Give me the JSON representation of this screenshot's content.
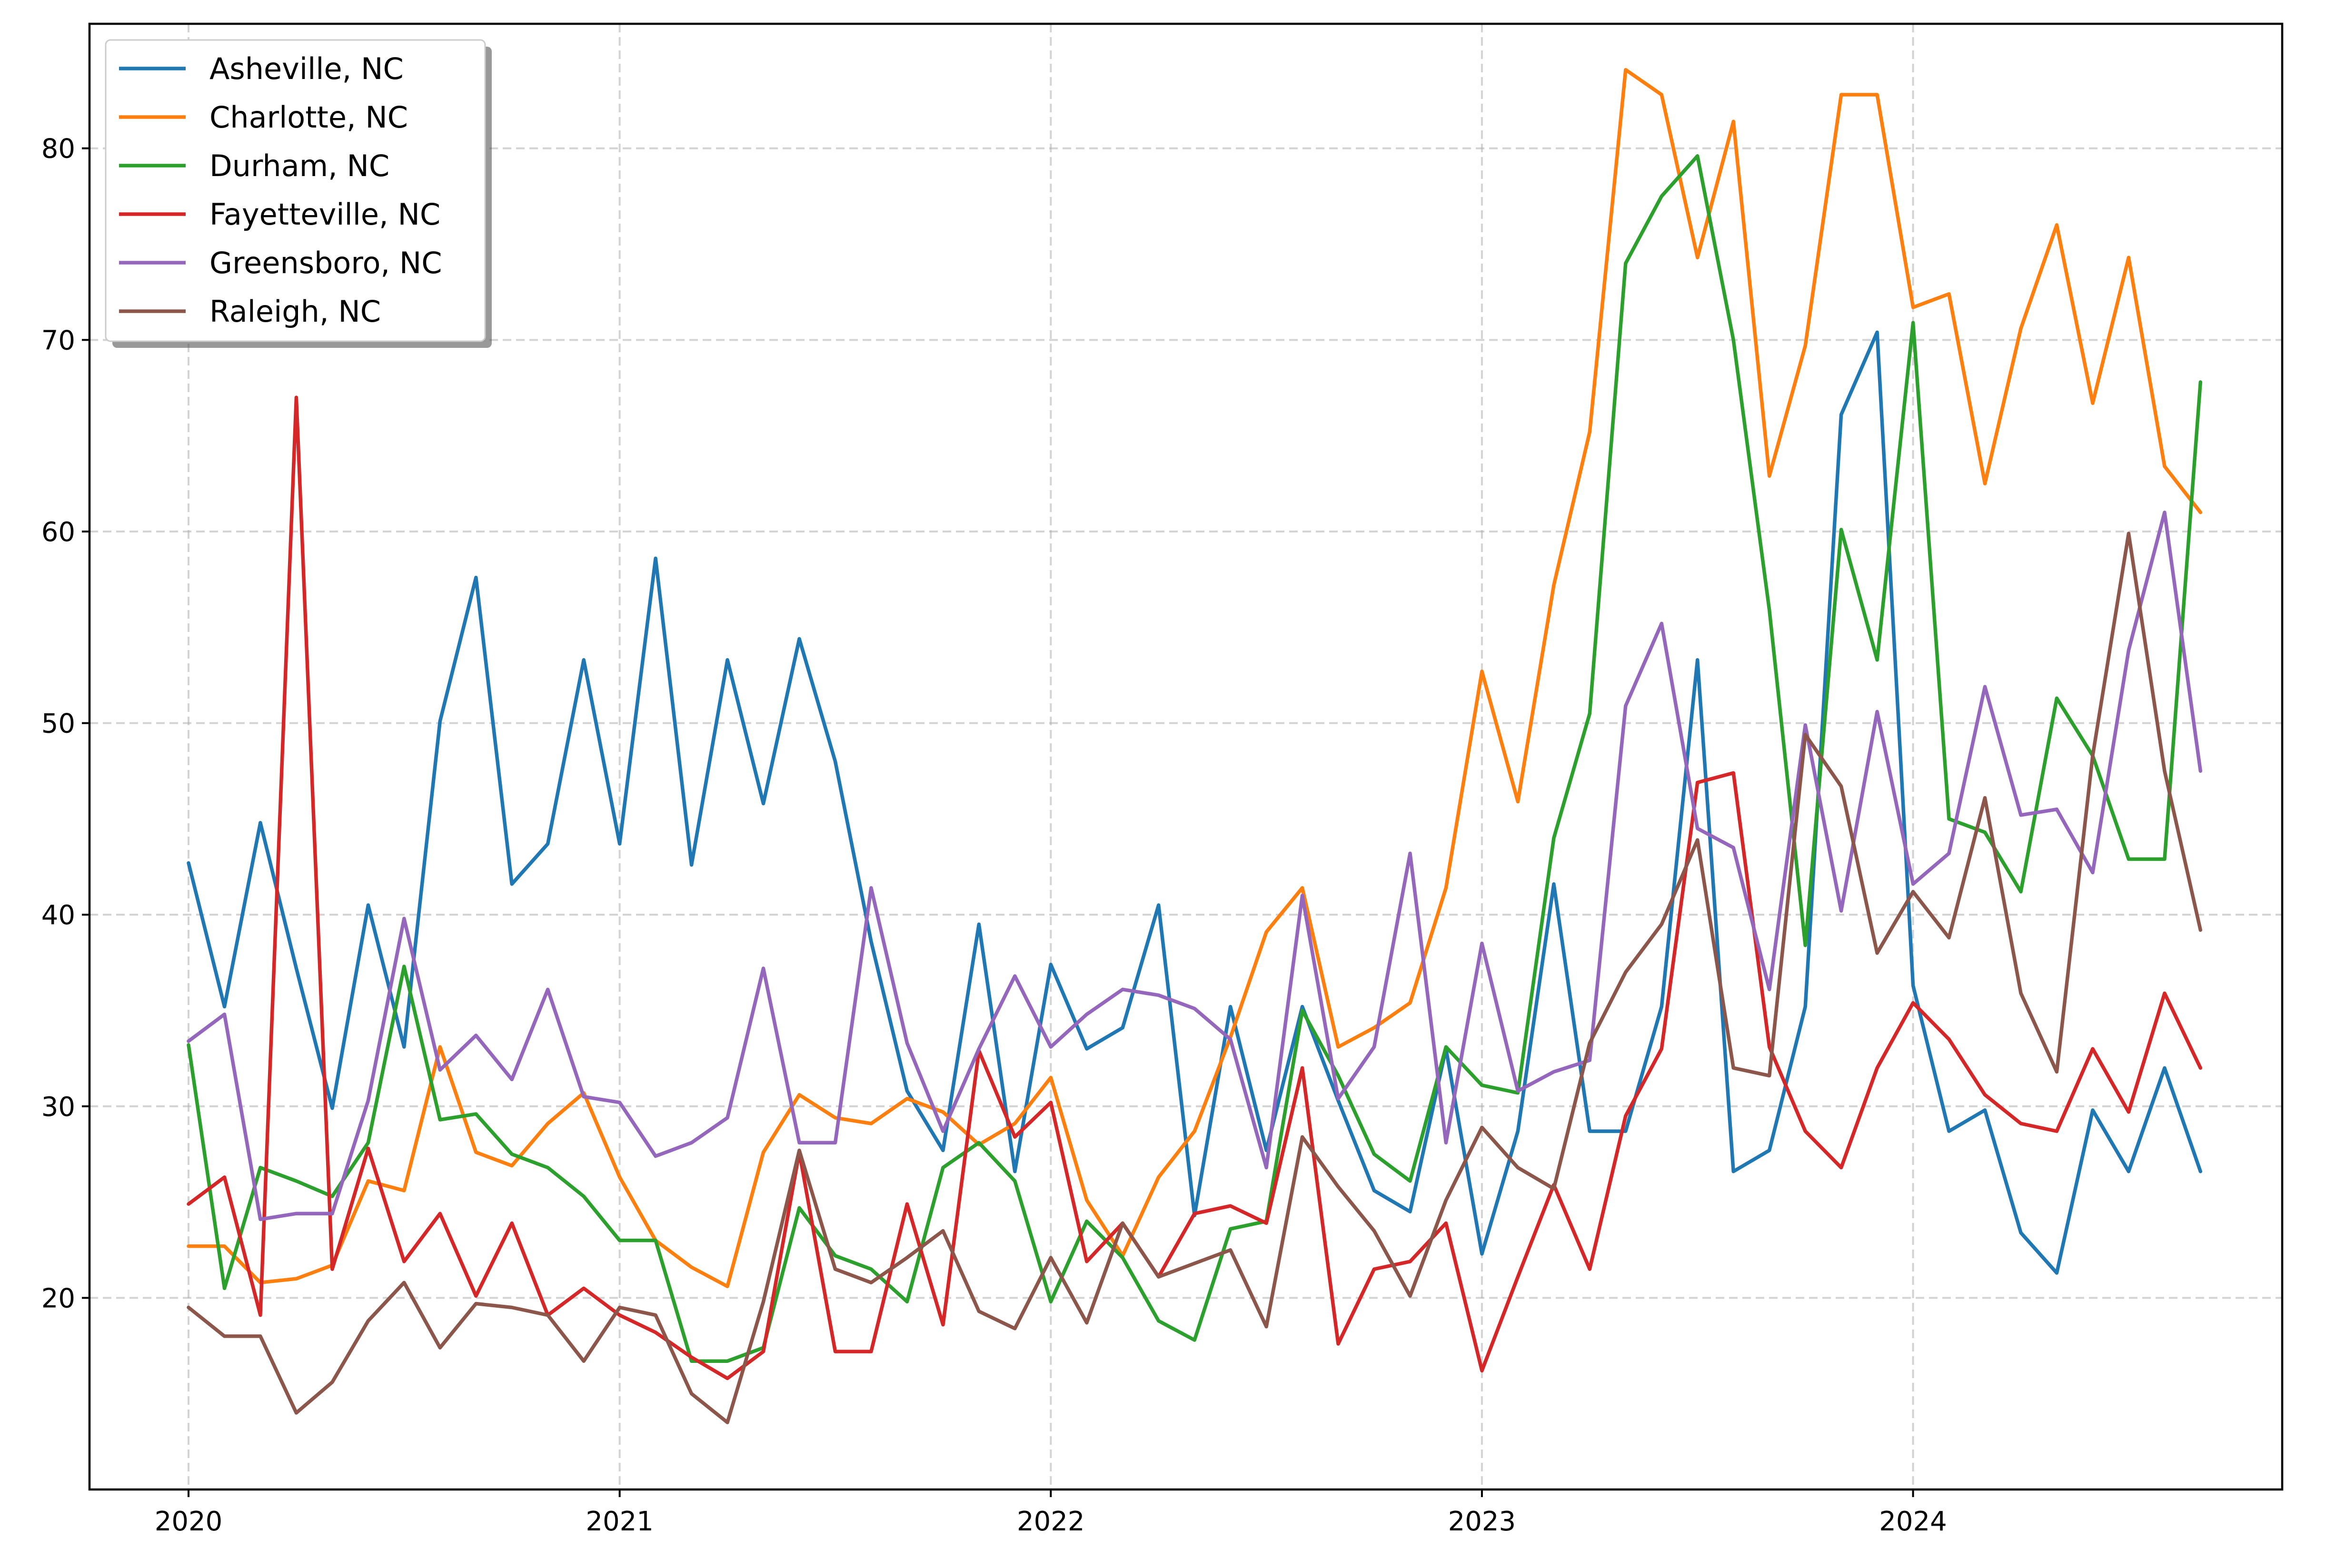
{
  "chart_data": {
    "type": "line",
    "title": "",
    "xlabel": "",
    "ylabel": "",
    "grid": true,
    "legend_position": "top-left",
    "x_start": "2020-01",
    "x_ticks": [
      "2020",
      "2021",
      "2022",
      "2023",
      "2024"
    ],
    "y_ticks": [
      20,
      30,
      40,
      50,
      60,
      70,
      80
    ],
    "ylim": [
      10,
      86.5
    ],
    "series": [
      {
        "name": "Asheville, NC",
        "color": "#1f77b4",
        "values": [
          42.7,
          35.2,
          44.8,
          37.2,
          29.9,
          40.5,
          33.1,
          50.1,
          57.6,
          41.6,
          43.7,
          53.3,
          43.7,
          58.6,
          42.6,
          53.3,
          45.8,
          54.4,
          48.0,
          38.6,
          30.8,
          27.7,
          39.5,
          26.6,
          37.4,
          33.0,
          34.1,
          40.5,
          24.3,
          35.2,
          27.7,
          35.2,
          30.3,
          25.6,
          24.5,
          33.0,
          22.3,
          28.7,
          41.6,
          28.7,
          28.7,
          35.2,
          53.3,
          26.6,
          27.7,
          35.2,
          66.1,
          70.4,
          36.3,
          28.7,
          29.8,
          23.4,
          21.3,
          29.8,
          26.6,
          32.0,
          26.6
        ]
      },
      {
        "name": "Charlotte, NC",
        "color": "#ff7f0e",
        "values": [
          22.7,
          22.7,
          20.8,
          21.0,
          21.7,
          26.1,
          25.6,
          33.1,
          27.6,
          26.9,
          29.1,
          30.7,
          26.3,
          23.0,
          21.6,
          20.6,
          27.6,
          30.6,
          29.4,
          29.1,
          30.4,
          29.7,
          28.0,
          29.1,
          31.5,
          25.1,
          22.2,
          26.3,
          28.7,
          33.6,
          39.1,
          41.4,
          33.1,
          34.1,
          35.4,
          41.4,
          52.7,
          45.9,
          57.2,
          65.2,
          84.1,
          82.8,
          74.3,
          81.4,
          62.9,
          69.7,
          82.8,
          82.8,
          71.7,
          72.4,
          62.5,
          70.6,
          76.0,
          66.7,
          74.3,
          63.4,
          61.0
        ]
      },
      {
        "name": "Durham, NC",
        "color": "#2ca02c",
        "values": [
          33.2,
          20.5,
          26.8,
          26.1,
          25.3,
          28.1,
          37.3,
          29.3,
          29.6,
          27.5,
          26.8,
          25.3,
          23.0,
          23.0,
          16.7,
          16.7,
          17.4,
          24.7,
          22.2,
          21.5,
          19.8,
          26.8,
          28.1,
          26.1,
          19.8,
          24.0,
          22.1,
          18.8,
          17.8,
          23.6,
          24.0,
          35.0,
          31.6,
          27.5,
          26.1,
          33.1,
          31.1,
          30.7,
          44.0,
          50.5,
          74.0,
          77.5,
          79.6,
          70.0,
          55.9,
          38.4,
          60.1,
          53.3,
          70.9,
          45.0,
          44.3,
          41.2,
          51.3,
          48.3,
          42.9,
          42.9,
          67.8
        ]
      },
      {
        "name": "Fayetteville, NC",
        "color": "#d62728",
        "values": [
          24.9,
          26.3,
          19.1,
          67.0,
          21.5,
          27.8,
          21.9,
          24.4,
          20.1,
          23.9,
          19.1,
          20.5,
          19.1,
          18.2,
          16.9,
          15.8,
          17.2,
          27.6,
          17.2,
          17.2,
          24.9,
          18.6,
          32.9,
          28.4,
          30.2,
          21.9,
          23.9,
          21.1,
          24.4,
          24.8,
          23.9,
          32.0,
          17.6,
          21.5,
          21.9,
          23.9,
          16.2,
          21.1,
          25.9,
          21.5,
          29.5,
          33.0,
          46.9,
          47.4,
          33.1,
          28.7,
          26.8,
          32.0,
          35.4,
          33.5,
          30.6,
          29.1,
          28.7,
          33.0,
          29.7,
          35.9,
          32.0
        ]
      },
      {
        "name": "Greensboro, NC",
        "color": "#9467bd",
        "values": [
          33.4,
          34.8,
          24.1,
          24.4,
          24.4,
          30.3,
          39.8,
          31.9,
          33.7,
          31.4,
          36.1,
          30.5,
          30.2,
          27.4,
          28.1,
          29.4,
          37.2,
          28.1,
          28.1,
          41.4,
          33.3,
          28.7,
          33.0,
          36.8,
          33.1,
          34.8,
          36.1,
          35.8,
          35.1,
          33.5,
          26.8,
          41.0,
          30.4,
          33.1,
          43.2,
          28.1,
          38.5,
          30.8,
          31.8,
          32.4,
          50.9,
          55.2,
          44.5,
          43.5,
          36.1,
          49.9,
          40.2,
          50.6,
          41.6,
          43.2,
          51.9,
          45.2,
          45.5,
          42.2,
          53.8,
          61.0,
          47.5
        ]
      },
      {
        "name": "Raleigh, NC",
        "color": "#8c564b",
        "values": [
          19.5,
          18.0,
          18.0,
          14.0,
          15.6,
          18.8,
          20.8,
          17.4,
          19.7,
          19.5,
          19.1,
          16.7,
          19.5,
          19.1,
          15.0,
          13.5,
          19.8,
          27.7,
          21.5,
          20.8,
          22.1,
          23.5,
          19.3,
          18.4,
          22.1,
          18.7,
          23.9,
          21.1,
          21.8,
          22.5,
          18.5,
          28.4,
          25.8,
          23.5,
          20.1,
          25.1,
          28.9,
          26.8,
          25.7,
          33.3,
          37.0,
          39.5,
          43.9,
          32.0,
          31.6,
          49.4,
          46.7,
          38.0,
          41.2,
          38.8,
          46.1,
          35.9,
          31.8,
          48.3,
          59.9,
          47.5,
          39.2
        ]
      }
    ]
  }
}
